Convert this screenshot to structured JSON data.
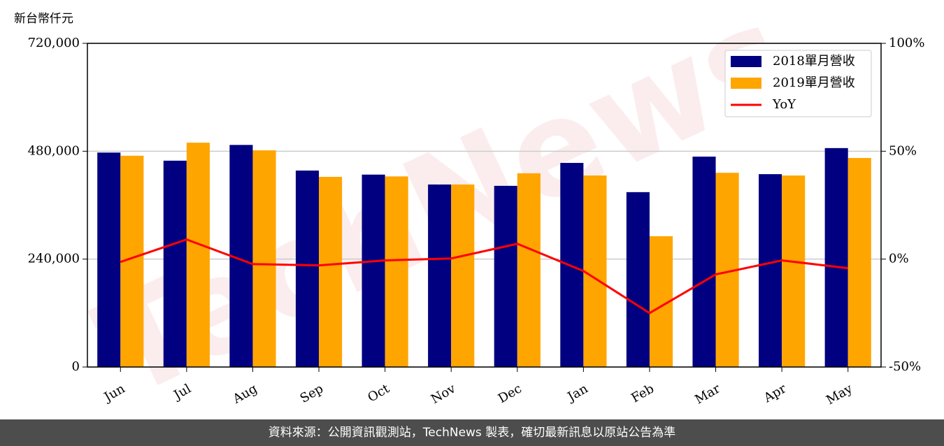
{
  "chart_data": {
    "type": "bar",
    "unit_label": "新台幣仟元",
    "watermark": "TechNews",
    "categories": [
      "Jun",
      "Jul",
      "Aug",
      "Sep",
      "Oct",
      "Nov",
      "Dec",
      "Jan",
      "Feb",
      "Mar",
      "Apr",
      "May"
    ],
    "series": [
      {
        "name": "2018單月營收",
        "color": "#000080",
        "type": "bar",
        "values": [
          477000,
          459000,
          494000,
          437000,
          428000,
          406000,
          403000,
          454000,
          389000,
          468000,
          429000,
          487000
        ]
      },
      {
        "name": "2019單月營收",
        "color": "#ffa500",
        "type": "bar",
        "values": [
          470000,
          499000,
          482000,
          423000,
          424000,
          406000,
          431000,
          426000,
          291000,
          432000,
          426000,
          465000
        ]
      },
      {
        "name": "YoY",
        "color": "#ff0000",
        "type": "line",
        "axis": "y2",
        "values": [
          -1.3,
          9.1,
          -2.3,
          -2.9,
          -0.6,
          0.3,
          7.1,
          -5.5,
          -25,
          -7.1,
          -0.6,
          -4.2
        ]
      }
    ],
    "ylim": [
      0,
      720000
    ],
    "yticks": [
      0,
      {
        "value": 240000,
        "label": "240,000"
      },
      {
        "value": 480000,
        "label": "480,000"
      },
      {
        "value": 720000,
        "label": "720,000"
      }
    ],
    "y2lim": [
      -50,
      100
    ],
    "y2ticks": [
      {
        "value": -50,
        "label": "-50%"
      },
      {
        "value": 0,
        "label": "0%"
      },
      {
        "value": 50,
        "label": "50%"
      },
      {
        "value": 100,
        "label": "100%"
      }
    ],
    "grid": true,
    "legend": "upper right"
  },
  "footer": {
    "text": "資料來源：公開資訊觀測站，TechNews 製表，確切最新訊息以原站公告為準"
  }
}
